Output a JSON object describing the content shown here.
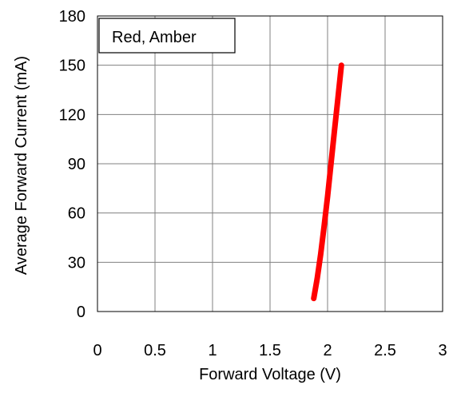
{
  "chart_data": {
    "type": "line",
    "title": "",
    "xlabel": "Forward Voltage (V)",
    "ylabel": "Average Forward Current (mA)",
    "xlim": [
      0,
      3
    ],
    "ylim": [
      0,
      180
    ],
    "x_ticks": [
      0,
      0.5,
      1,
      1.5,
      2,
      2.5,
      3
    ],
    "y_ticks": [
      0,
      30,
      60,
      90,
      120,
      150,
      180
    ],
    "x_tick_labels": [
      "0",
      "0.5",
      "1",
      "1.5",
      "2",
      "2.5",
      "3"
    ],
    "y_tick_labels": [
      "0",
      "30",
      "60",
      "90",
      "120",
      "150",
      "180"
    ],
    "grid": true,
    "legend": {
      "text": "Red, Amber",
      "placement": "top-left"
    },
    "series": [
      {
        "color": "#ff0000",
        "points": [
          [
            1.88,
            8
          ],
          [
            1.91,
            20
          ],
          [
            1.94,
            35
          ],
          [
            1.97,
            52
          ],
          [
            2.0,
            70
          ],
          [
            2.03,
            90
          ],
          [
            2.06,
            110
          ],
          [
            2.09,
            130
          ],
          [
            2.12,
            150
          ]
        ]
      }
    ]
  }
}
